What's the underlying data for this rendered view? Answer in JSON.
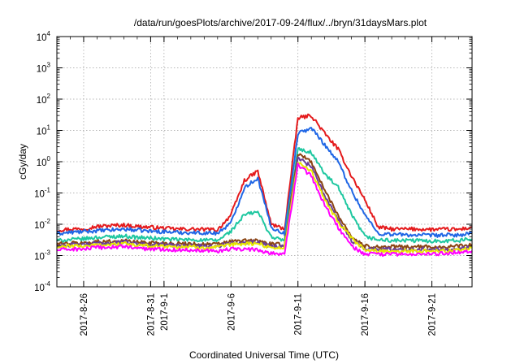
{
  "chart_data": {
    "type": "line",
    "title": "/data/run/goesPlots/archive/2017-09-24/flux/../bryn/31daysMars.plot",
    "xlabel": "Coordinated Universal Time (UTC)",
    "ylabel": "cGy/day",
    "yscale": "log",
    "ylim": [
      0.0001,
      10000
    ],
    "xlim": [
      "2017-08-24",
      "2017-09-24"
    ],
    "grid": true,
    "legend": "none",
    "y_ticks": [
      {
        "base": "10",
        "exp": "-4"
      },
      {
        "base": "10",
        "exp": "-3"
      },
      {
        "base": "10",
        "exp": "-2"
      },
      {
        "base": "10",
        "exp": "-1"
      },
      {
        "base": "10",
        "exp": "0"
      },
      {
        "base": "10",
        "exp": "1"
      },
      {
        "base": "10",
        "exp": "2"
      },
      {
        "base": "10",
        "exp": "3"
      },
      {
        "base": "10",
        "exp": "4"
      }
    ],
    "x_ticks": [
      {
        "date": "2017-08-26",
        "label": "2017-8-26"
      },
      {
        "date": "2017-08-31",
        "label": "2017-8-31"
      },
      {
        "date": "2017-09-01",
        "label": "2017-9-1"
      },
      {
        "date": "2017-09-06",
        "label": "2017-9-6"
      },
      {
        "date": "2017-09-11",
        "label": "2017-9-11"
      },
      {
        "date": "2017-09-16",
        "label": "2017-9-16"
      },
      {
        "date": "2017-09-21",
        "label": "2017-9-21"
      }
    ],
    "x": [
      "2017-08-24",
      "2017-08-25",
      "2017-08-26",
      "2017-08-27",
      "2017-08-28",
      "2017-08-29",
      "2017-08-30",
      "2017-08-31",
      "2017-09-01",
      "2017-09-02",
      "2017-09-03",
      "2017-09-04",
      "2017-09-05",
      "2017-09-06",
      "2017-09-07",
      "2017-09-08",
      "2017-09-09",
      "2017-09-10",
      "2017-09-11",
      "2017-09-12",
      "2017-09-13",
      "2017-09-14",
      "2017-09-15",
      "2017-09-16",
      "2017-09-17",
      "2017-09-18",
      "2017-09-19",
      "2017-09-20",
      "2017-09-21",
      "2017-09-22",
      "2017-09-23",
      "2017-09-24"
    ],
    "series": [
      {
        "color": "#e41a1c",
        "values": [
          0.0065,
          0.007,
          0.0072,
          0.0085,
          0.009,
          0.0095,
          0.0085,
          0.008,
          0.0075,
          0.007,
          0.007,
          0.0068,
          0.0066,
          0.02,
          0.25,
          0.5,
          0.01,
          0.007,
          25,
          30,
          8,
          2.5,
          0.35,
          0.06,
          0.008,
          0.007,
          0.007,
          0.007,
          0.0068,
          0.0069,
          0.0068,
          0.008
        ]
      },
      {
        "color": "#1f66e5",
        "values": [
          0.005,
          0.0055,
          0.0058,
          0.0062,
          0.0065,
          0.007,
          0.0065,
          0.006,
          0.0058,
          0.0055,
          0.0054,
          0.0053,
          0.0052,
          0.011,
          0.15,
          0.3,
          0.008,
          0.005,
          8,
          12,
          3.5,
          1.0,
          0.12,
          0.02,
          0.005,
          0.0048,
          0.0046,
          0.0045,
          0.0044,
          0.0045,
          0.0045,
          0.005
        ]
      },
      {
        "color": "#1ec7a0",
        "values": [
          0.003,
          0.0032,
          0.0034,
          0.0038,
          0.004,
          0.0042,
          0.0038,
          0.0036,
          0.0034,
          0.0032,
          0.0032,
          0.0031,
          0.003,
          0.006,
          0.02,
          0.025,
          0.004,
          0.003,
          2.5,
          2.0,
          0.4,
          0.15,
          0.02,
          0.004,
          0.0032,
          0.003,
          0.003,
          0.003,
          0.0029,
          0.003,
          0.003,
          0.0034
        ]
      },
      {
        "color": "#8b4513",
        "values": [
          0.0023,
          0.0025,
          0.0025,
          0.0028,
          0.0028,
          0.003,
          0.0027,
          0.0026,
          0.0025,
          0.0024,
          0.0024,
          0.0023,
          0.0023,
          0.0028,
          0.003,
          0.003,
          0.0023,
          0.0022,
          1.8,
          1.0,
          0.12,
          0.02,
          0.004,
          0.002,
          0.0019,
          0.0019,
          0.0019,
          0.0019,
          0.0019,
          0.0019,
          0.002,
          0.0022
        ]
      },
      {
        "color": "#6a3d9a",
        "values": [
          0.002,
          0.0022,
          0.0022,
          0.0025,
          0.0025,
          0.0027,
          0.0024,
          0.0023,
          0.0022,
          0.0021,
          0.0021,
          0.002,
          0.002,
          0.0025,
          0.0027,
          0.0027,
          0.002,
          0.002,
          1.3,
          0.7,
          0.08,
          0.015,
          0.003,
          0.0017,
          0.0016,
          0.0016,
          0.0016,
          0.0016,
          0.0016,
          0.0016,
          0.0017,
          0.0019
        ]
      },
      {
        "color": "#e8e800",
        "values": [
          0.0018,
          0.002,
          0.002,
          0.0022,
          0.0022,
          0.0024,
          0.0021,
          0.002,
          0.002,
          0.0019,
          0.0019,
          0.0018,
          0.0018,
          0.0022,
          0.0024,
          0.0024,
          0.0018,
          0.0018,
          1.0,
          0.5,
          0.06,
          0.012,
          0.0035,
          0.0015,
          0.0014,
          0.0014,
          0.0014,
          0.0014,
          0.0014,
          0.0014,
          0.0015,
          0.0017
        ]
      },
      {
        "color": "#ff00ff",
        "values": [
          0.0015,
          0.0016,
          0.0016,
          0.0018,
          0.0018,
          0.002,
          0.0017,
          0.0016,
          0.0016,
          0.0015,
          0.0015,
          0.0015,
          0.0014,
          0.0016,
          0.0016,
          0.0015,
          0.0012,
          0.0011,
          0.8,
          0.35,
          0.04,
          0.008,
          0.002,
          0.0011,
          0.0011,
          0.0011,
          0.0011,
          0.0011,
          0.0011,
          0.0012,
          0.0013,
          0.0014
        ]
      }
    ]
  }
}
